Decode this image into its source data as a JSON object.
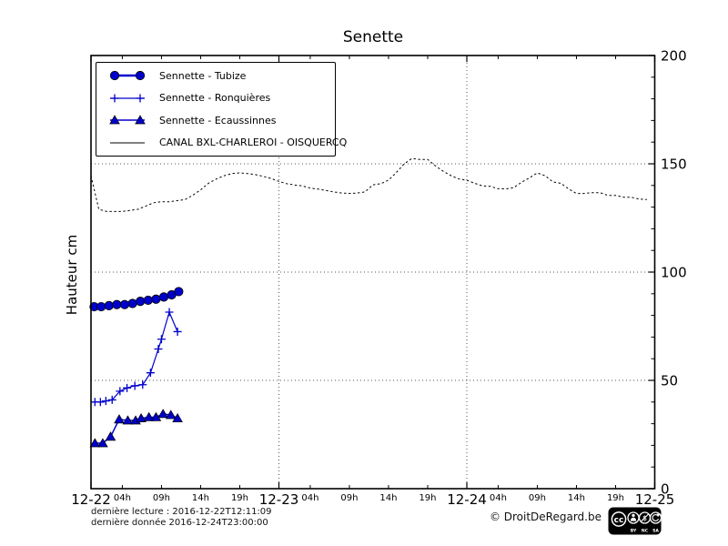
{
  "title": "Senette",
  "axes": {
    "y_label": "Hauteur cm",
    "y_ticks": [
      "0",
      "50",
      "100",
      "150",
      "200"
    ],
    "y_range": [
      0,
      200
    ],
    "y_minor_step": 10,
    "x_day_labels": [
      "12-22",
      "12-23",
      "12-24",
      "12-25"
    ],
    "x_hour_labels": [
      "04h",
      "09h",
      "14h",
      "19h"
    ],
    "x_hour_values": [
      4,
      9,
      14,
      19
    ],
    "x_range_hours": [
      0,
      72
    ]
  },
  "chart_data": {
    "type": "line",
    "title": "Senette",
    "ylabel": "Hauteur cm",
    "ylim": [
      0,
      200
    ],
    "yticks": [
      0,
      50,
      100,
      150,
      200
    ],
    "x_unit": "hours since 2016-12-22 00:00",
    "x_day_labels": [
      "12-22",
      "12-23",
      "12-24",
      "12-25"
    ],
    "grid": "dotted lines at day boundaries (x) and every 50 cm (y)",
    "legend_position": "upper left",
    "series": [
      {
        "key": "tubize",
        "label": "Sennette - Tubize",
        "color": "#0000cc",
        "marker": "circle",
        "line_width": 2.4,
        "line_style": "solid",
        "x_hours": [
          0.4,
          1.3,
          2.3,
          3.3,
          4.3,
          5.3,
          6.3,
          7.3,
          8.3,
          9.3,
          10.3,
          11.2
        ],
        "values": [
          84,
          84,
          84.5,
          85,
          85,
          85.5,
          86.5,
          87,
          87.5,
          88.5,
          89.5,
          91
        ]
      },
      {
        "key": "ronquieres",
        "label": "Sennette - Ronquières",
        "color": "#0000cc",
        "marker": "plus",
        "line_width": 1.2,
        "line_style": "solid",
        "x_hours": [
          0.5,
          1.2,
          1.9,
          2.7,
          3.7,
          4.6,
          5.6,
          6.6,
          7.6,
          8.6,
          9.0,
          10.0,
          11.05
        ],
        "values": [
          40,
          40,
          40.5,
          41,
          45,
          46.5,
          47.5,
          48,
          53.5,
          64.5,
          69,
          81.5,
          72.5
        ]
      },
      {
        "key": "ecaussinnes",
        "label": "Sennette - Ecaussinnes",
        "color": "#0000cc",
        "marker": "triangle",
        "line_width": 1.5,
        "line_style": "solid",
        "x_hours": [
          0.5,
          1.5,
          2.5,
          3.6,
          4.7,
          5.7,
          6.4,
          7.4,
          8.3,
          9.2,
          10.2,
          11.05
        ],
        "values": [
          21,
          21,
          24,
          32,
          31.5,
          31.5,
          32.5,
          33,
          33,
          34.5,
          34,
          32.5
        ]
      },
      {
        "key": "canal",
        "label": "CANAL BXL-CHARLEROI  - OISQUERCQ",
        "color": "#000000",
        "marker": "none",
        "line_width": 1,
        "line_style": "dotted",
        "x_start": 0,
        "x_step": 1,
        "values": [
          144.5,
          129,
          128,
          128,
          128,
          128.5,
          129,
          130.5,
          132,
          132.5,
          132.5,
          133,
          133.5,
          135.5,
          138,
          141,
          143,
          144.5,
          145.5,
          145.8,
          145.5,
          145,
          144.2,
          143.2,
          141.9,
          140.8,
          140.2,
          139.8,
          138.8,
          138.3,
          137.7,
          137,
          136.5,
          136.3,
          136.5,
          137,
          140.3,
          140.8,
          142.5,
          146,
          150,
          152.5,
          152,
          152,
          149,
          146.5,
          144.5,
          143,
          142.4,
          141,
          139.8,
          139.6,
          138.5,
          138.4,
          139,
          141.5,
          143.5,
          145.8,
          144.5,
          141.6,
          141,
          138.4,
          136.3,
          136.3,
          136.7,
          136.7,
          135.4,
          135.4,
          134.6,
          134.6,
          133.7,
          133.5
        ]
      }
    ]
  },
  "footer": {
    "last_reading": "dernière lecture : 2016-12-22T12:11:09",
    "last_data": "dernière donnée  2016-12-24T23:00:00",
    "copyright": "© DroitDeRegard.be",
    "license": {
      "name": "CC BY-NC-SA",
      "cc_text": "cc",
      "labels": [
        "BY",
        "NC",
        "SA"
      ]
    }
  }
}
